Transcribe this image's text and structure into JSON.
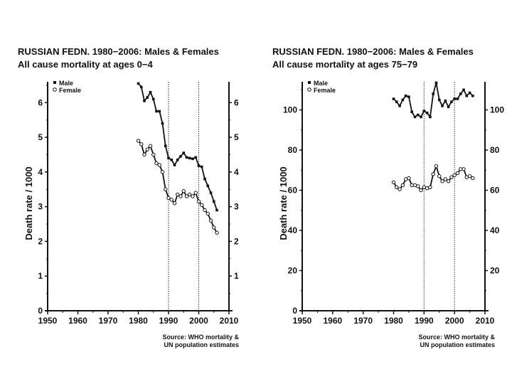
{
  "chart_data": [
    {
      "type": "line",
      "title": "RUSSIAN FEDN. 1980−2006: Males & Females",
      "subtitle": "All cause mortality at ages 0−4",
      "xlabel": "",
      "ylabel": "Death rate / 1000",
      "xlim": [
        1950,
        2010
      ],
      "ylim": [
        0,
        6.6
      ],
      "xticks": [
        1950,
        1960,
        1970,
        1980,
        1990,
        2000,
        2010
      ],
      "yticks": [
        0,
        1,
        2,
        3,
        4,
        5,
        6
      ],
      "right_yticks": [
        1,
        2,
        3,
        4,
        5,
        6
      ],
      "vlines": [
        1990,
        2000
      ],
      "legend_position": "top-left",
      "x": [
        1980,
        1981,
        1982,
        1983,
        1984,
        1985,
        1986,
        1987,
        1988,
        1989,
        1990,
        1991,
        1992,
        1993,
        1994,
        1995,
        1996,
        1997,
        1998,
        1999,
        2000,
        2001,
        2002,
        2003,
        2004,
        2005,
        2006
      ],
      "series": [
        {
          "name": "Male",
          "marker": "filled-square",
          "values": [
            6.55,
            6.45,
            6.05,
            6.15,
            6.3,
            6.1,
            5.75,
            5.75,
            5.4,
            4.75,
            4.4,
            4.35,
            4.2,
            4.35,
            4.45,
            4.55,
            4.42,
            4.4,
            4.38,
            4.42,
            4.18,
            4.15,
            3.8,
            3.6,
            3.4,
            3.15,
            2.9
          ]
        },
        {
          "name": "Female",
          "marker": "open-circle",
          "values": [
            4.9,
            4.8,
            4.5,
            4.65,
            4.75,
            4.5,
            4.25,
            4.2,
            4.0,
            3.5,
            3.25,
            3.2,
            3.1,
            3.35,
            3.3,
            3.45,
            3.3,
            3.35,
            3.3,
            3.4,
            3.15,
            3.05,
            2.9,
            2.8,
            2.6,
            2.4,
            2.25
          ]
        }
      ],
      "source": [
        "Source: WHO mortality &",
        "UN population estimates"
      ]
    },
    {
      "type": "line",
      "title": "RUSSIAN FEDN. 1980−2006: Males & Females",
      "subtitle": "All cause mortality at ages 75−79",
      "xlabel": "",
      "ylabel": "Death rate / 1000",
      "xlim": [
        1950,
        2010
      ],
      "ylim": [
        0,
        114
      ],
      "xticks": [
        1950,
        1960,
        1970,
        1980,
        1990,
        2000,
        2010
      ],
      "yticks": [
        0,
        20,
        40,
        60,
        80,
        100
      ],
      "right_yticks": [
        20,
        40,
        60,
        80,
        100
      ],
      "vlines": [
        1990,
        2000
      ],
      "legend_position": "top-left",
      "x": [
        1980,
        1981,
        1982,
        1983,
        1984,
        1985,
        1986,
        1987,
        1988,
        1989,
        1990,
        1991,
        1992,
        1993,
        1994,
        1995,
        1996,
        1997,
        1998,
        1999,
        2000,
        2001,
        2002,
        2003,
        2004,
        2005,
        2006
      ],
      "series": [
        {
          "name": "Male",
          "marker": "filled-square",
          "values": [
            105.5,
            104,
            102,
            105,
            107,
            106.5,
            99,
            96.5,
            97.5,
            96.5,
            99.5,
            98.5,
            96.5,
            108,
            113.5,
            105,
            102,
            104.5,
            101.5,
            104,
            105.5,
            105.5,
            108,
            110,
            107,
            108.5,
            107
          ]
        },
        {
          "name": "Female",
          "marker": "open-circle",
          "values": [
            64,
            61.5,
            60.5,
            62.5,
            65.5,
            66,
            62.5,
            62.5,
            62,
            60,
            61.5,
            61,
            61.5,
            68,
            72,
            67,
            64.5,
            65.5,
            64.5,
            66.5,
            67.5,
            68.5,
            70.5,
            70.5,
            66.5,
            67,
            66
          ]
        }
      ],
      "source": [
        "Source: WHO mortality &",
        "UN population estimates"
      ]
    }
  ]
}
